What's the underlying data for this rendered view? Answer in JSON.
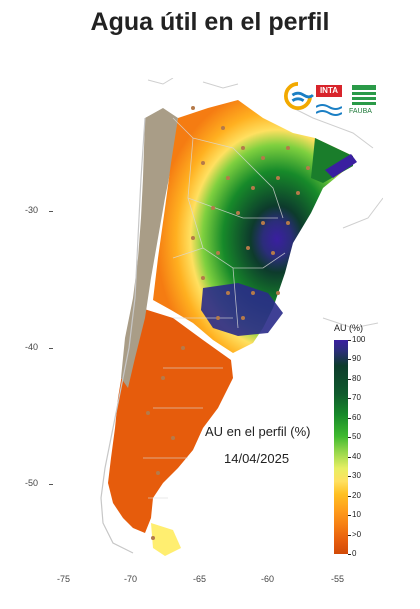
{
  "title": "Agua útil en el perfil",
  "map": {
    "annotation_line1": "AU en el perfil (%)",
    "annotation_line2": "14/04/2025",
    "lon_ticks": [
      "-75",
      "-70",
      "-65",
      "-60",
      "-55"
    ],
    "lat_ticks": [
      "-30",
      "-40",
      "-50"
    ]
  },
  "logos": {
    "inta": "INTA",
    "fauba": "FAUBA"
  },
  "legend": {
    "title": "AU (%)",
    "labels": [
      "100",
      "90",
      "80",
      "70",
      "60",
      "50",
      "40",
      "30",
      "20",
      "10",
      ">0",
      "0"
    ]
  },
  "colors": {
    "wet_purple": "#3a1fa0",
    "dark_green": "#0d3b2c",
    "green": "#3fba2f",
    "yellow": "#ffe060",
    "orange": "#f57c12",
    "dry_orange": "#d14a08",
    "andes_gray": "#a99d87",
    "station_dot": "#b57a4a"
  }
}
